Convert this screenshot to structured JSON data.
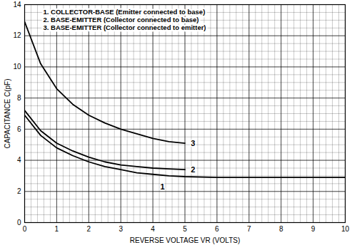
{
  "chart_data": {
    "type": "line",
    "xlabel": "REVERSE VOLTAGE VR (VOLTS)",
    "ylabel": "CAPACITANCE C(pF)",
    "x": [
      0,
      0.5,
      1,
      1.5,
      2,
      2.5,
      3,
      3.5,
      4,
      4.5,
      5,
      6,
      7,
      8,
      9,
      10
    ],
    "series": [
      {
        "name": "1. COLLECTOR-BASE (Emitter connected to base)",
        "color": "#000000",
        "marker": "none",
        "line_style": "solid",
        "values": [
          6.9,
          5.6,
          4.8,
          4.3,
          3.9,
          3.6,
          3.4,
          3.2,
          3.1,
          3.0,
          2.95,
          2.9,
          2.9,
          2.9,
          2.9,
          2.9
        ]
      },
      {
        "name": "2. BASE-EMITTER (Collector connected to base)",
        "color": "#000000",
        "marker": "none",
        "line_style": "solid",
        "values": [
          7.2,
          5.9,
          5.1,
          4.6,
          4.2,
          3.9,
          3.7,
          3.6,
          3.5,
          3.45,
          3.4,
          null,
          null,
          null,
          null,
          null
        ]
      },
      {
        "name": "3. BASE-EMITTER (Collector connected to emitter)",
        "color": "#000000",
        "marker": "none",
        "line_style": "solid",
        "values": [
          12.9,
          10.2,
          8.6,
          7.6,
          6.9,
          6.4,
          6.0,
          5.7,
          5.4,
          5.2,
          5.1,
          null,
          null,
          null,
          null,
          null
        ]
      }
    ],
    "xlim": [
      0,
      10
    ],
    "ylim": [
      0,
      14
    ],
    "xticks": [
      0,
      1,
      2,
      3,
      4,
      5,
      6,
      7,
      8,
      9,
      10
    ],
    "yticks": [
      0,
      2,
      4,
      6,
      8,
      10,
      12,
      14
    ],
    "grid": true,
    "legend": "upper left",
    "annotations": [
      {
        "text": "1",
        "x": 4.3,
        "y": 2.3
      },
      {
        "text": "2",
        "x": 5.25,
        "y": 3.4
      },
      {
        "text": "3",
        "x": 5.25,
        "y": 5.1
      }
    ]
  }
}
